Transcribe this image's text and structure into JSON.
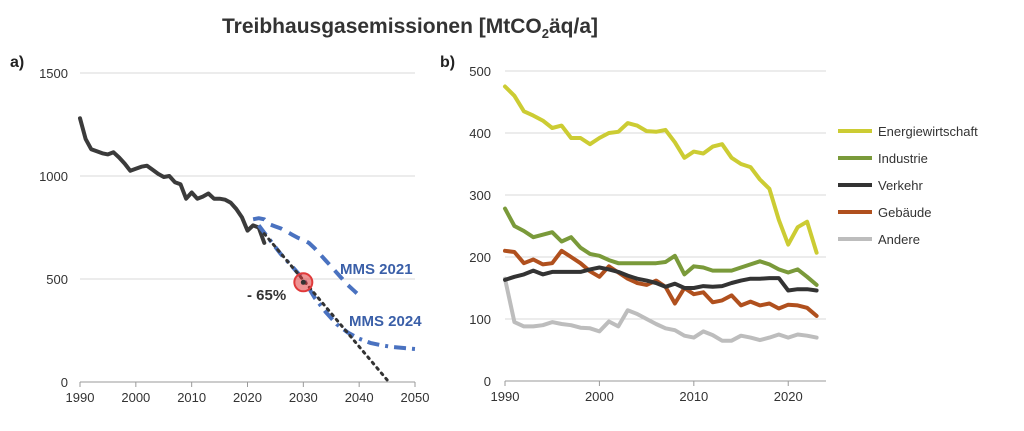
{
  "title_main": "Treibhausgasemissionen [MtCO",
  "title_sub": "2",
  "title_rest": "äq/a]",
  "colors": {
    "total": "#3b3b3b",
    "mms": "#4a72c0",
    "target_dot": "#333333",
    "highlight": "#e03a3a",
    "Energiewirtschaft": "#cccc33",
    "Industrie": "#7a9a3a",
    "Verkehr": "#333333",
    "Gebäude": "#b0501e",
    "Andere": "#bdbdbd"
  },
  "chart_data": [
    {
      "panel": "a)",
      "type": "line",
      "xlim": [
        1990,
        2050
      ],
      "ylim": [
        0,
        1500
      ],
      "xticks": [
        "1990",
        "2000",
        "2010",
        "2020",
        "2030",
        "2040",
        "2050"
      ],
      "yticks": [
        "0",
        "500",
        "1000",
        "1500"
      ],
      "annotations": {
        "mms2021": "MMS 2021",
        "mms2024": "MMS 2024",
        "reduction": "- 65%"
      },
      "highlight_point": {
        "x": 2030,
        "y": 484
      },
      "series": [
        {
          "key": "total",
          "style": "solid",
          "x": [
            1990,
            1991,
            1992,
            1993,
            1994,
            1995,
            1996,
            1997,
            1998,
            1999,
            2000,
            2001,
            2002,
            2003,
            2004,
            2005,
            2006,
            2007,
            2008,
            2009,
            2010,
            2011,
            2012,
            2013,
            2014,
            2015,
            2016,
            2017,
            2018,
            2019,
            2020,
            2021,
            2022,
            2023
          ],
          "y": [
            1280,
            1180,
            1130,
            1120,
            1110,
            1105,
            1115,
            1090,
            1060,
            1025,
            1035,
            1045,
            1050,
            1030,
            1010,
            995,
            1000,
            970,
            960,
            890,
            920,
            890,
            900,
            915,
            890,
            890,
            885,
            870,
            840,
            800,
            735,
            760,
            750,
            675
          ]
        },
        {
          "key": "mms",
          "name": "MMS 2021",
          "style": "dashed",
          "x": [
            2021,
            2022,
            2023,
            2024,
            2025,
            2026,
            2027,
            2028,
            2029,
            2030,
            2031,
            2032,
            2033,
            2034,
            2035,
            2036,
            2037,
            2038,
            2039,
            2040
          ],
          "y": [
            790,
            795,
            790,
            765,
            755,
            745,
            730,
            715,
            700,
            690,
            675,
            650,
            620,
            590,
            560,
            530,
            500,
            470,
            445,
            420
          ]
        },
        {
          "key": "mms",
          "name": "MMS 2024",
          "style": "dashdot",
          "x": [
            2022,
            2024,
            2026,
            2028,
            2030,
            2032,
            2034,
            2036,
            2038,
            2040,
            2042,
            2044,
            2046,
            2048,
            2050
          ],
          "y": [
            760,
            690,
            620,
            560,
            500,
            410,
            340,
            280,
            240,
            210,
            190,
            178,
            170,
            165,
            160
          ]
        },
        {
          "key": "target_dot",
          "style": "dotted",
          "x": [
            2023,
            2045
          ],
          "y": [
            720,
            10
          ]
        }
      ]
    },
    {
      "panel": "b)",
      "type": "line",
      "xlim": [
        1990,
        2024
      ],
      "ylim": [
        0,
        500
      ],
      "xticks": [
        "1990",
        "2000",
        "2010",
        "2020"
      ],
      "yticks": [
        "0",
        "100",
        "200",
        "300",
        "400",
        "500"
      ],
      "years": [
        1990,
        1991,
        1992,
        1993,
        1994,
        1995,
        1996,
        1997,
        1998,
        1999,
        2000,
        2001,
        2002,
        2003,
        2004,
        2005,
        2006,
        2007,
        2008,
        2009,
        2010,
        2011,
        2012,
        2013,
        2014,
        2015,
        2016,
        2017,
        2018,
        2019,
        2020,
        2021,
        2022,
        2023
      ],
      "series": [
        {
          "name": "Energiewirtschaft",
          "values": [
            475,
            460,
            435,
            428,
            420,
            408,
            412,
            392,
            392,
            382,
            392,
            400,
            402,
            416,
            412,
            403,
            402,
            405,
            385,
            360,
            370,
            367,
            378,
            382,
            360,
            350,
            345,
            325,
            310,
            260,
            220,
            248,
            257,
            207
          ]
        },
        {
          "name": "Industrie",
          "values": [
            278,
            250,
            242,
            232,
            236,
            240,
            225,
            232,
            215,
            205,
            202,
            195,
            190,
            190,
            190,
            190,
            190,
            192,
            202,
            172,
            185,
            183,
            178,
            178,
            178,
            183,
            188,
            193,
            188,
            180,
            175,
            180,
            168,
            155
          ]
        },
        {
          "name": "Verkehr",
          "values": [
            163,
            168,
            172,
            178,
            172,
            176,
            176,
            176,
            176,
            180,
            183,
            180,
            176,
            170,
            165,
            162,
            158,
            152,
            157,
            150,
            150,
            153,
            152,
            153,
            158,
            162,
            165,
            165,
            166,
            166,
            146,
            148,
            148,
            146
          ]
        },
        {
          "name": "Gebäude",
          "values": [
            210,
            208,
            190,
            196,
            188,
            190,
            210,
            200,
            190,
            177,
            168,
            185,
            175,
            165,
            158,
            155,
            162,
            152,
            125,
            150,
            140,
            143,
            127,
            130,
            138,
            122,
            128,
            122,
            125,
            117,
            123,
            122,
            118,
            105
          ]
        },
        {
          "name": "Andere",
          "values": [
            165,
            95,
            88,
            88,
            90,
            95,
            92,
            90,
            86,
            85,
            80,
            96,
            88,
            114,
            108,
            100,
            92,
            85,
            82,
            73,
            70,
            80,
            74,
            65,
            65,
            73,
            70,
            66,
            70,
            75,
            70,
            75,
            73,
            70
          ]
        }
      ]
    }
  ]
}
